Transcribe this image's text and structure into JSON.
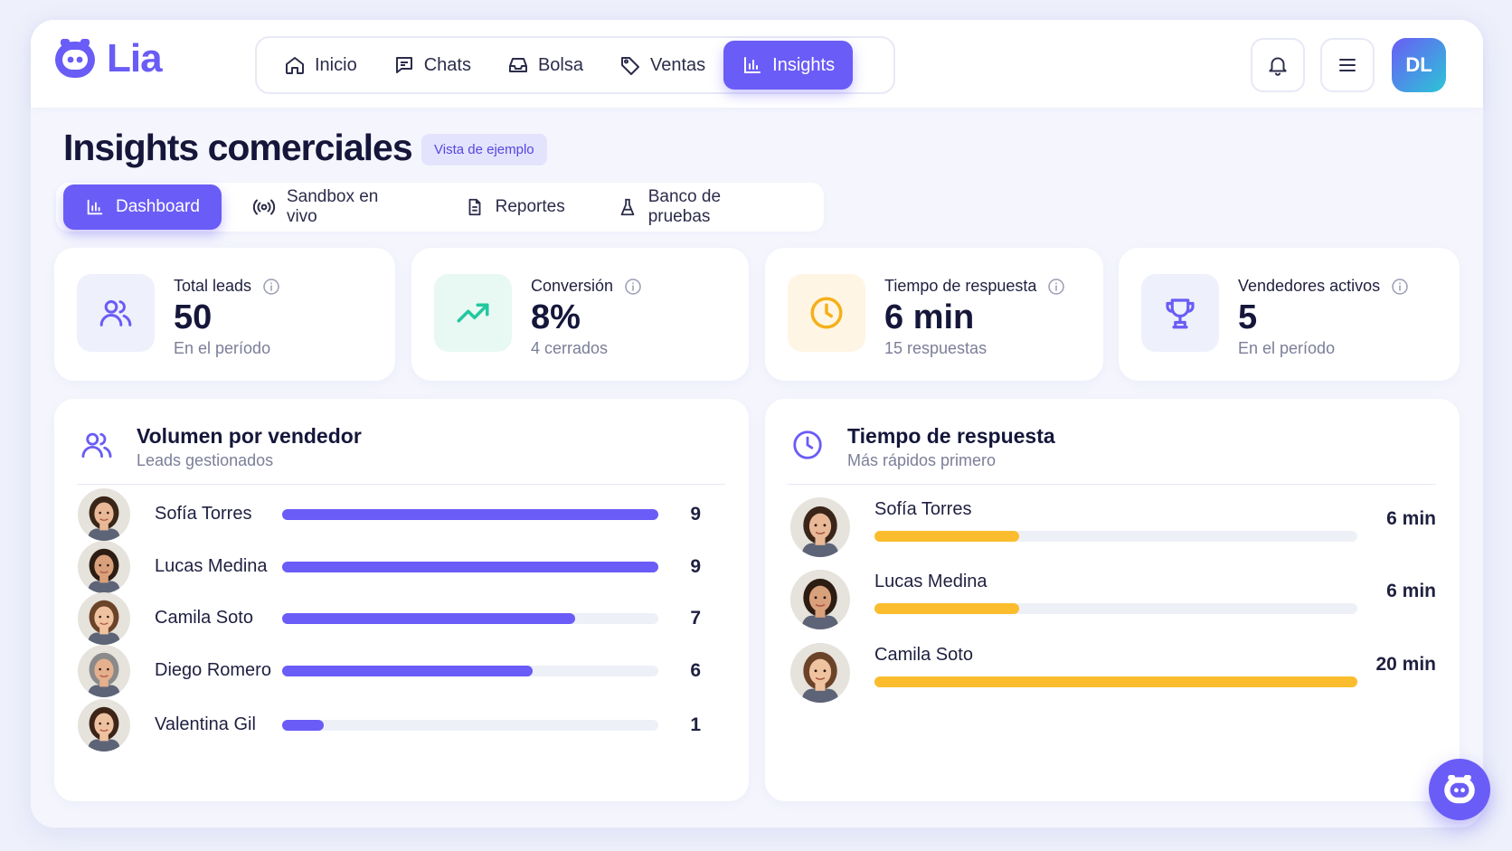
{
  "app": {
    "name": "Lia"
  },
  "nav": {
    "items": [
      {
        "label": "Inicio",
        "icon": "home-icon"
      },
      {
        "label": "Chats",
        "icon": "chat-icon"
      },
      {
        "label": "Bolsa",
        "icon": "inbox-icon"
      },
      {
        "label": "Ventas",
        "icon": "tag-icon"
      },
      {
        "label": "Insights",
        "icon": "bar-chart-icon",
        "active": true
      }
    ]
  },
  "header": {
    "avatar_initials": "DL"
  },
  "page": {
    "title": "Insights comerciales",
    "badge": "Vista de ejemplo"
  },
  "subtabs": [
    {
      "label": "Dashboard",
      "icon": "bar-chart-icon",
      "active": true
    },
    {
      "label": "Sandbox en vivo",
      "icon": "broadcast-icon"
    },
    {
      "label": "Reportes",
      "icon": "document-icon"
    },
    {
      "label": "Banco de pruebas",
      "icon": "flask-icon"
    }
  ],
  "stats": [
    {
      "label": "Total leads",
      "value": "50",
      "sub": "En el período",
      "icon": "users-icon"
    },
    {
      "label": "Conversión",
      "value": "8%",
      "sub": "4 cerrados",
      "icon": "trending-up-icon"
    },
    {
      "label": "Tiempo de respuesta",
      "value": "6 min",
      "sub": "15 respuestas",
      "icon": "clock-icon"
    },
    {
      "label": "Vendedores activos",
      "value": "5",
      "sub": "En el período",
      "icon": "trophy-icon"
    }
  ],
  "volume": {
    "title": "Volumen por vendedor",
    "subtitle": "Leads gestionados",
    "max": 9,
    "rows": [
      {
        "name": "Sofía Torres",
        "value": 9
      },
      {
        "name": "Lucas Medina",
        "value": 9
      },
      {
        "name": "Camila Soto",
        "value": 7
      },
      {
        "name": "Diego Romero",
        "value": 6
      },
      {
        "name": "Valentina Gil",
        "value": 1
      }
    ]
  },
  "response": {
    "title": "Tiempo de respuesta",
    "subtitle": "Más rápidos primero",
    "max": 20,
    "rows": [
      {
        "name": "Sofía Torres",
        "value": 6,
        "label": "6 min"
      },
      {
        "name": "Lucas Medina",
        "value": 6,
        "label": "6 min"
      },
      {
        "name": "Camila Soto",
        "value": 20,
        "label": "20 min"
      }
    ]
  },
  "colors": {
    "accent": "#6a5cf6",
    "bar_volume": "#6a5cf6",
    "bar_response": "#fbbd2e",
    "track": "#eef0f7"
  }
}
